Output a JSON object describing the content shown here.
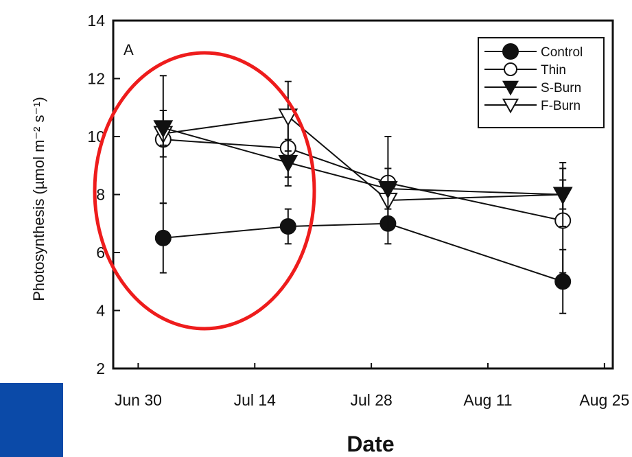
{
  "colors": {
    "ink": "#111111",
    "highlight": "#ee1c1c",
    "corner_block": "#0b4aa8"
  },
  "chart_data": {
    "type": "line",
    "panel_label": "A",
    "xlabel": "Date",
    "ylabel": "Photosynthesis (µmol m⁻² s⁻¹)",
    "x_ticks": [
      "Jun 30",
      "Jul 14",
      "Jul 28",
      "Aug 11",
      "Aug 25"
    ],
    "x_tick_dates": [
      "2000-06-30",
      "2000-07-14",
      "2000-07-28",
      "2000-08-11",
      "2000-08-25"
    ],
    "y_ticks": [
      2,
      4,
      6,
      8,
      10,
      12,
      14
    ],
    "ylim": [
      2,
      14
    ],
    "xlim": [
      "2000-06-27",
      "2000-08-26"
    ],
    "grid": false,
    "legend_position": "top-right",
    "series": [
      {
        "name": "Control",
        "marker": "circle-filled",
        "points": [
          {
            "x": "2000-07-03",
            "y": 6.5,
            "err": 1.2
          },
          {
            "x": "2000-07-18",
            "y": 6.9,
            "err": 0.6
          },
          {
            "x": "2000-07-30",
            "y": 7.0,
            "err": 0.7
          },
          {
            "x": "2000-08-20",
            "y": 5.0,
            "err": 1.1
          }
        ]
      },
      {
        "name": "Thin",
        "marker": "circle-open",
        "points": [
          {
            "x": "2000-07-03",
            "y": 9.9,
            "err": 2.2
          },
          {
            "x": "2000-07-18",
            "y": 9.6,
            "err": 1.0
          },
          {
            "x": "2000-07-30",
            "y": 8.4,
            "err": 1.6
          },
          {
            "x": "2000-08-20",
            "y": 7.1,
            "err": 1.8
          }
        ]
      },
      {
        "name": "S-Burn",
        "marker": "triangle-down-filled",
        "points": [
          {
            "x": "2000-07-03",
            "y": 10.3,
            "err": 0.6
          },
          {
            "x": "2000-07-18",
            "y": 9.1,
            "err": 0.8
          },
          {
            "x": "2000-07-30",
            "y": 8.2,
            "err": 0.7
          },
          {
            "x": "2000-08-20",
            "y": 8.0,
            "err": 0.5
          }
        ]
      },
      {
        "name": "F-Burn",
        "marker": "triangle-down-open",
        "points": [
          {
            "x": "2000-07-03",
            "y": 10.1,
            "err": 0.8
          },
          {
            "x": "2000-07-18",
            "y": 10.7,
            "err": 1.2
          },
          {
            "x": "2000-07-30",
            "y": 7.8,
            "err": 0.6
          },
          {
            "x": "2000-08-20",
            "y": 8.0,
            "err": 1.1
          }
        ]
      }
    ],
    "annotations": [
      {
        "shape": "ellipse",
        "color": "red",
        "encloses": "Jun 30 – Jul 14 data points"
      }
    ]
  }
}
